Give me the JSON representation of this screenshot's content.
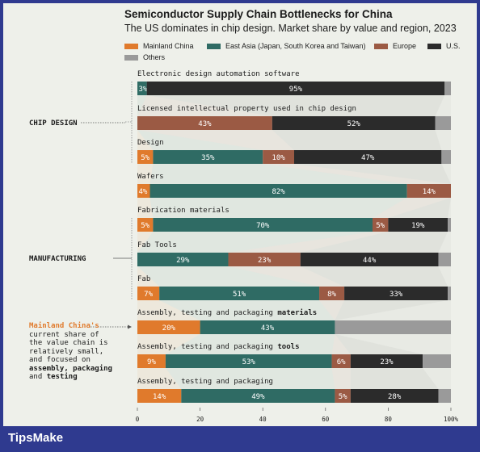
{
  "title": "Semiconductor Supply Chain Bottlenecks for China",
  "subtitle": "The US dominates in chip design. Market share by value and region, 2023",
  "colors": {
    "Mainland China": "#e07a2c",
    "East Asia (Japan, South Korea and Taiwan)": "#2f6b64",
    "Europe": "#9b5a44",
    "U.S.": "#2b2b2b",
    "Others": "#9a9a9a"
  },
  "legend": [
    "Mainland China",
    "East Asia (Japan, South Korea and Taiwan)",
    "Europe",
    "U.S.",
    "Others"
  ],
  "groups": [
    "CHIP DESIGN",
    "MANUFACTURING"
  ],
  "annotation": {
    "highlight": "Mainland China's",
    "line1": "current share of",
    "line2": "the value chain is",
    "line3": "relatively small,",
    "line4": "and focused on",
    "bold1": "assembly, packaging",
    "line5a": "and ",
    "bold2": "testing"
  },
  "brand": "TipsMake",
  "chart_data": {
    "type": "bar",
    "orientation": "horizontal",
    "stacked": true,
    "xlim": [
      0,
      100
    ],
    "x_ticks": [
      "0",
      "20",
      "40",
      "60",
      "80",
      "100%"
    ],
    "series": [
      "Mainland China",
      "East Asia (Japan, South Korea and Taiwan)",
      "Europe",
      "U.S.",
      "Others"
    ],
    "categories": [
      {
        "name": "Electronic design automation software",
        "group": "CHIP DESIGN",
        "values": [
          0,
          3,
          0,
          95,
          2
        ],
        "labels": [
          "",
          "3%",
          "",
          "95%",
          ""
        ]
      },
      {
        "name": "Licensed intellectual property used in chip design",
        "group": "CHIP DESIGN",
        "values": [
          0,
          0,
          43,
          52,
          5
        ],
        "labels": [
          "",
          "",
          "43%",
          "52%",
          ""
        ]
      },
      {
        "name": "Design",
        "group": "CHIP DESIGN",
        "values": [
          5,
          35,
          10,
          47,
          3
        ],
        "labels": [
          "5%",
          "35%",
          "10%",
          "47%",
          ""
        ]
      },
      {
        "name": "Wafers",
        "group": "",
        "values": [
          4,
          82,
          14,
          0,
          0
        ],
        "labels": [
          "4%",
          "82%",
          "14%",
          "",
          ""
        ]
      },
      {
        "name": "Fabrication materials",
        "group": "MANUFACTURING",
        "values": [
          5,
          70,
          5,
          19,
          1
        ],
        "labels": [
          "5%",
          "70%",
          "5%",
          "19%",
          ""
        ]
      },
      {
        "name": "Fab Tools",
        "group": "MANUFACTURING",
        "values": [
          0,
          29,
          23,
          44,
          4
        ],
        "labels": [
          "",
          "29%",
          "23%",
          "44%",
          ""
        ]
      },
      {
        "name": "Fab",
        "group": "MANUFACTURING",
        "values": [
          7,
          51,
          8,
          33,
          1
        ],
        "labels": [
          "7%",
          "51%",
          "8%",
          "33%",
          ""
        ]
      },
      {
        "name": "Assembly, testing and packaging materials",
        "group": "",
        "values": [
          20,
          43,
          0,
          0,
          37
        ],
        "labels": [
          "20%",
          "43%",
          "",
          "",
          ""
        ]
      },
      {
        "name": "Assembly, testing and packaging tools",
        "group": "",
        "values": [
          9,
          53,
          6,
          23,
          9
        ],
        "labels": [
          "9%",
          "53%",
          "6%",
          "23%",
          ""
        ]
      },
      {
        "name": "Assembly, testing and packaging",
        "group": "",
        "values": [
          14,
          49,
          5,
          28,
          4
        ],
        "labels": [
          "14%",
          "49%",
          "5%",
          "28%",
          ""
        ]
      }
    ]
  }
}
